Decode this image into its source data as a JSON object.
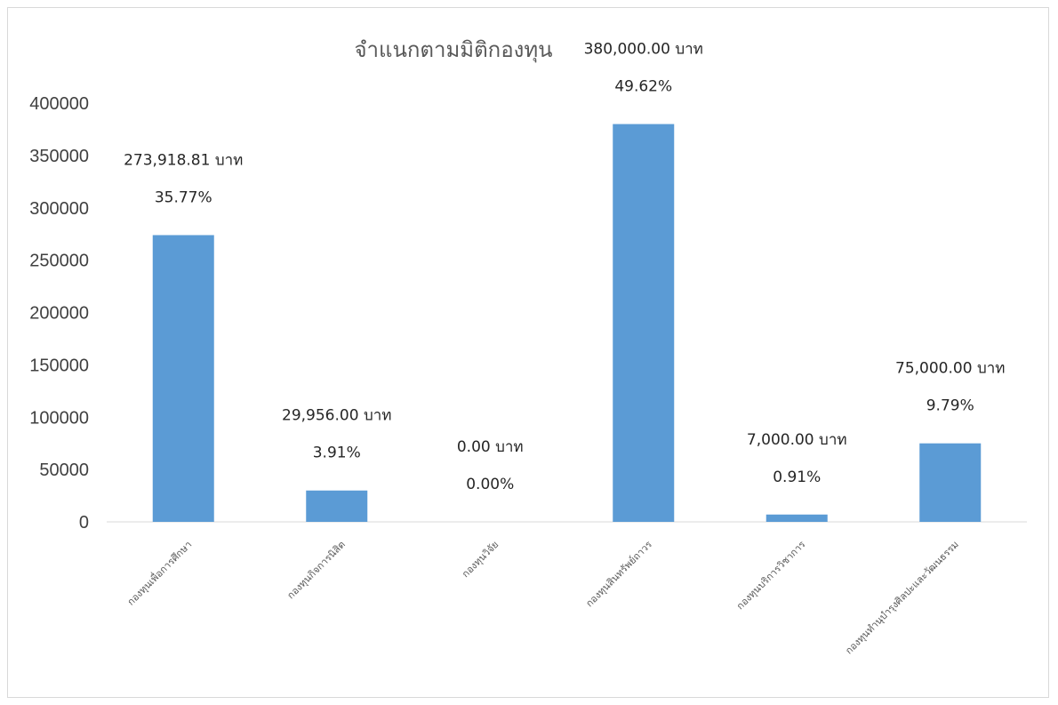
{
  "chart_data": {
    "type": "bar",
    "title": "จำแนกตามมิติกองทุน",
    "categories": [
      "กองทุนเพื่อการศึกษา",
      "กองทุนกิจการนิสิต",
      "กองทุนวิจัย",
      "กองทุนสินทรัพย์ถาวร",
      "กองทุนบริการวิชาการ",
      "กองทุนทำนุบำรุงศิลปะและวัฒนธรรม"
    ],
    "values": [
      273918.81,
      29956.0,
      0.0,
      380000.0,
      7000.0,
      75000.0
    ],
    "value_labels": [
      "273,918.81 บาท",
      "29,956.00 บาท",
      "0.00 บาท",
      "380,000.00 บาท",
      "7,000.00 บาท",
      "75,000.00 บาท"
    ],
    "percent_labels": [
      "35.77%",
      "3.91%",
      "0.00%",
      "49.62%",
      "0.91%",
      "9.79%"
    ],
    "yticks": [
      "0",
      "50000",
      "100000",
      "150000",
      "200000",
      "250000",
      "300000",
      "350000",
      "400000"
    ],
    "ylim": [
      0,
      400000
    ],
    "xlabel": "",
    "ylabel": "",
    "grid": false,
    "legend": "none",
    "bar_color": "#5b9bd5"
  }
}
